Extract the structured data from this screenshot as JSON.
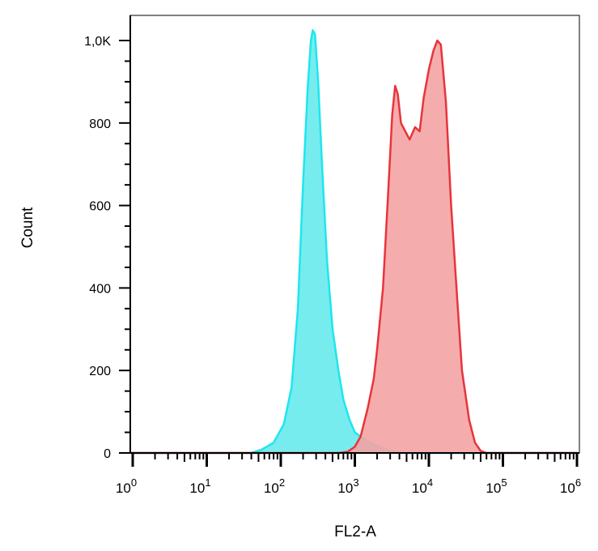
{
  "chart_data": {
    "type": "area",
    "xlabel": "FL2-A",
    "ylabel": "Count",
    "x_scale": "log",
    "xlim": [
      0.5,
      1000000
    ],
    "ylim": [
      0,
      1030
    ],
    "y_ticks": [
      {
        "value": 0,
        "label": "0"
      },
      {
        "value": 200,
        "label": "200"
      },
      {
        "value": 400,
        "label": "400"
      },
      {
        "value": 600,
        "label": "600"
      },
      {
        "value": 800,
        "label": "800"
      },
      {
        "value": 1000,
        "label": "1,0K"
      }
    ],
    "x_ticks": [
      {
        "value": 1,
        "base": "10",
        "exp": "0"
      },
      {
        "value": 10,
        "base": "10",
        "exp": "1"
      },
      {
        "value": 100,
        "base": "10",
        "exp": "2"
      },
      {
        "value": 1000,
        "base": "10",
        "exp": "3"
      },
      {
        "value": 10000,
        "base": "10",
        "exp": "4"
      },
      {
        "value": 100000,
        "base": "10",
        "exp": "5"
      },
      {
        "value": 1000000,
        "base": "10",
        "exp": "6"
      }
    ],
    "grid": false,
    "legend": "none",
    "series": [
      {
        "stroke": "#1ee6ee",
        "fill": "#76ecef",
        "points": [
          [
            0.5,
            0
          ],
          [
            40,
            0
          ],
          [
            55,
            8
          ],
          [
            80,
            25
          ],
          [
            110,
            70
          ],
          [
            140,
            160
          ],
          [
            170,
            350
          ],
          [
            200,
            650
          ],
          [
            230,
            880
          ],
          [
            255,
            1000
          ],
          [
            270,
            1025
          ],
          [
            290,
            1015
          ],
          [
            320,
            900
          ],
          [
            360,
            700
          ],
          [
            420,
            470
          ],
          [
            500,
            300
          ],
          [
            600,
            200
          ],
          [
            700,
            130
          ],
          [
            850,
            80
          ],
          [
            1000,
            50
          ],
          [
            1300,
            35
          ],
          [
            1800,
            20
          ],
          [
            2500,
            10
          ],
          [
            3500,
            3
          ],
          [
            5000,
            0
          ],
          [
            1000000,
            0
          ]
        ]
      },
      {
        "stroke": "#e8343a",
        "fill": "#f4a3a4",
        "points": [
          [
            0.5,
            0
          ],
          [
            600,
            0
          ],
          [
            800,
            3
          ],
          [
            1000,
            15
          ],
          [
            1200,
            40
          ],
          [
            1500,
            110
          ],
          [
            1800,
            180
          ],
          [
            2000,
            250
          ],
          [
            2400,
            400
          ],
          [
            2800,
            620
          ],
          [
            3200,
            820
          ],
          [
            3500,
            890
          ],
          [
            3800,
            870
          ],
          [
            4200,
            800
          ],
          [
            4800,
            780
          ],
          [
            5500,
            760
          ],
          [
            6500,
            790
          ],
          [
            7500,
            780
          ],
          [
            8500,
            860
          ],
          [
            10000,
            930
          ],
          [
            11500,
            975
          ],
          [
            13000,
            1000
          ],
          [
            14500,
            990
          ],
          [
            17000,
            850
          ],
          [
            20000,
            600
          ],
          [
            24000,
            380
          ],
          [
            28000,
            200
          ],
          [
            35000,
            80
          ],
          [
            42000,
            25
          ],
          [
            50000,
            5
          ],
          [
            60000,
            0
          ],
          [
            1000000,
            0
          ]
        ]
      }
    ]
  }
}
